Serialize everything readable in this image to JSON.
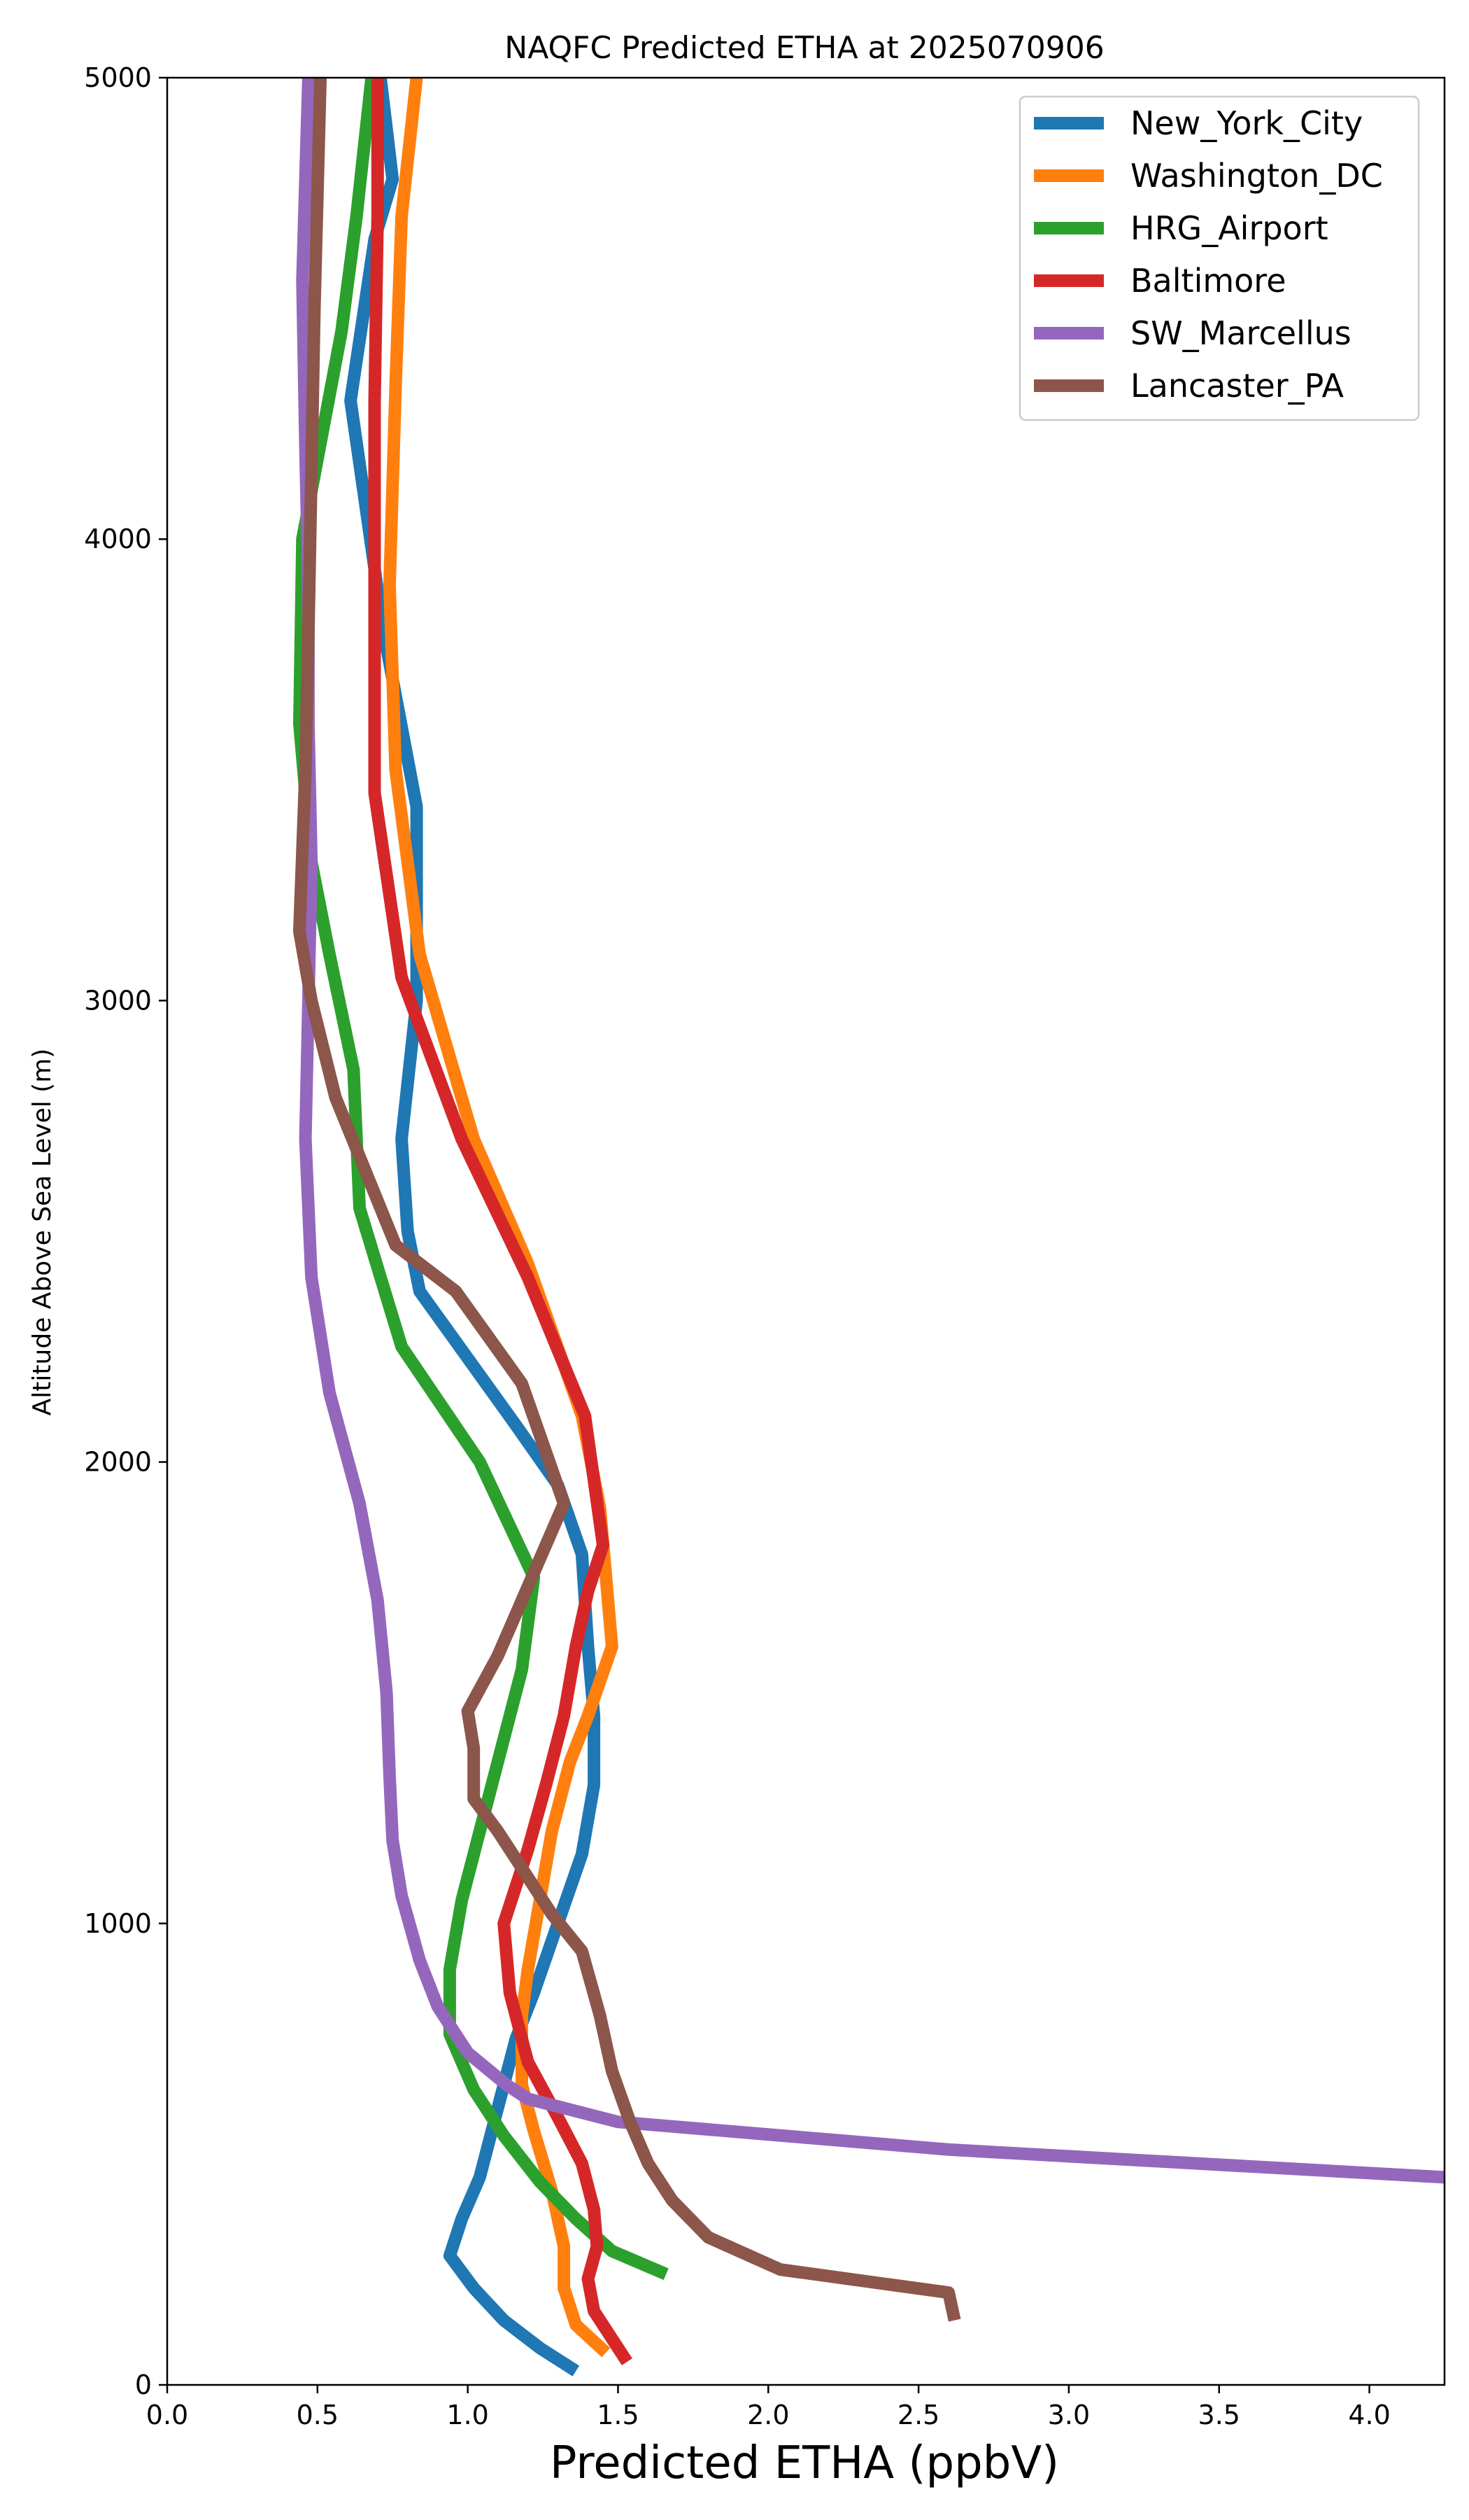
{
  "chart_data": {
    "type": "line",
    "title": "NAQFC Predicted ETHA at 2025070906",
    "xlabel": "Predicted ETHA (ppbV)",
    "ylabel": "Altitude Above Sea Level (m)",
    "xlim": [
      0.0,
      4.25
    ],
    "ylim": [
      0,
      5000
    ],
    "xticks": [
      "0.0",
      "0.5",
      "1.0",
      "1.5",
      "2.0",
      "2.5",
      "3.0",
      "3.5",
      "4.0"
    ],
    "xtick_values": [
      0.0,
      0.5,
      1.0,
      1.5,
      2.0,
      2.5,
      3.0,
      3.5,
      4.0
    ],
    "yticks": [
      "0",
      "1000",
      "2000",
      "3000",
      "4000",
      "5000"
    ],
    "ytick_values": [
      0,
      1000,
      2000,
      3000,
      4000,
      5000
    ],
    "grid": false,
    "legend_position": "top-right",
    "series": [
      {
        "name": "New_York_City",
        "color": "#1f77b4",
        "points": [
          [
            1.36,
            30
          ],
          [
            1.24,
            80
          ],
          [
            1.12,
            140
          ],
          [
            1.02,
            210
          ],
          [
            0.94,
            280
          ],
          [
            0.98,
            360
          ],
          [
            1.04,
            450
          ],
          [
            1.08,
            550
          ],
          [
            1.12,
            650
          ],
          [
            1.16,
            750
          ],
          [
            1.22,
            850
          ],
          [
            1.3,
            1000
          ],
          [
            1.38,
            1150
          ],
          [
            1.42,
            1300
          ],
          [
            1.42,
            1450
          ],
          [
            1.4,
            1600
          ],
          [
            1.38,
            1800
          ],
          [
            1.3,
            1950
          ],
          [
            1.16,
            2080
          ],
          [
            0.84,
            2370
          ],
          [
            0.8,
            2500
          ],
          [
            0.78,
            2700
          ],
          [
            0.83,
            3000
          ],
          [
            0.83,
            3420
          ],
          [
            0.72,
            3800
          ],
          [
            0.61,
            4300
          ],
          [
            0.69,
            4650
          ],
          [
            0.75,
            4780
          ],
          [
            0.71,
            5000
          ]
        ]
      },
      {
        "name": "Washington_DC",
        "color": "#ff7f0e",
        "points": [
          [
            1.46,
            70
          ],
          [
            1.36,
            130
          ],
          [
            1.32,
            210
          ],
          [
            1.32,
            300
          ],
          [
            1.28,
            420
          ],
          [
            1.22,
            550
          ],
          [
            1.18,
            650
          ],
          [
            1.18,
            800
          ],
          [
            1.2,
            900
          ],
          [
            1.24,
            1050
          ],
          [
            1.28,
            1200
          ],
          [
            1.34,
            1350
          ],
          [
            1.4,
            1450
          ],
          [
            1.48,
            1600
          ],
          [
            1.46,
            1750
          ],
          [
            1.44,
            1900
          ],
          [
            1.38,
            2100
          ],
          [
            1.2,
            2430
          ],
          [
            1.02,
            2700
          ],
          [
            0.84,
            3100
          ],
          [
            0.76,
            3500
          ],
          [
            0.74,
            3900
          ],
          [
            0.76,
            4330
          ],
          [
            0.78,
            4700
          ],
          [
            0.83,
            5000
          ]
        ]
      },
      {
        "name": "HRG_Airport",
        "color": "#2ca02c",
        "points": [
          [
            1.66,
            240
          ],
          [
            1.48,
            290
          ],
          [
            1.36,
            360
          ],
          [
            1.24,
            440
          ],
          [
            1.12,
            540
          ],
          [
            1.02,
            640
          ],
          [
            0.94,
            760
          ],
          [
            0.94,
            900
          ],
          [
            0.98,
            1050
          ],
          [
            1.04,
            1200
          ],
          [
            1.1,
            1350
          ],
          [
            1.18,
            1550
          ],
          [
            1.22,
            1750
          ],
          [
            1.04,
            2000
          ],
          [
            0.78,
            2250
          ],
          [
            0.64,
            2550
          ],
          [
            0.62,
            2850
          ],
          [
            0.54,
            3100
          ],
          [
            0.48,
            3300
          ],
          [
            0.44,
            3600
          ],
          [
            0.45,
            4000
          ],
          [
            0.58,
            4450
          ],
          [
            0.63,
            4700
          ],
          [
            0.68,
            5000
          ]
        ]
      },
      {
        "name": "Baltimore",
        "color": "#d62728",
        "points": [
          [
            1.53,
            50
          ],
          [
            1.47,
            110
          ],
          [
            1.42,
            160
          ],
          [
            1.4,
            230
          ],
          [
            1.43,
            300
          ],
          [
            1.42,
            380
          ],
          [
            1.38,
            480
          ],
          [
            1.3,
            580
          ],
          [
            1.2,
            700
          ],
          [
            1.14,
            850
          ],
          [
            1.12,
            1000
          ],
          [
            1.2,
            1160
          ],
          [
            1.26,
            1300
          ],
          [
            1.32,
            1450
          ],
          [
            1.36,
            1600
          ],
          [
            1.4,
            1720
          ],
          [
            1.45,
            1820
          ],
          [
            1.39,
            2100
          ],
          [
            1.2,
            2400
          ],
          [
            0.98,
            2700
          ],
          [
            0.78,
            3050
          ],
          [
            0.69,
            3450
          ],
          [
            0.69,
            3900
          ],
          [
            0.69,
            4300
          ],
          [
            0.7,
            4700
          ],
          [
            0.7,
            5000
          ]
        ]
      },
      {
        "name": "SW_Marcellus",
        "color": "#9467bd",
        "points": [
          [
            4.25,
            450
          ],
          [
            2.6,
            510
          ],
          [
            1.5,
            570
          ],
          [
            1.2,
            620
          ],
          [
            1.13,
            650
          ],
          [
            1.0,
            720
          ],
          [
            0.9,
            820
          ],
          [
            0.84,
            920
          ],
          [
            0.78,
            1060
          ],
          [
            0.75,
            1180
          ],
          [
            0.74,
            1320
          ],
          [
            0.73,
            1500
          ],
          [
            0.7,
            1700
          ],
          [
            0.64,
            1910
          ],
          [
            0.54,
            2150
          ],
          [
            0.48,
            2400
          ],
          [
            0.46,
            2700
          ],
          [
            0.47,
            3000
          ],
          [
            0.48,
            3300
          ],
          [
            0.47,
            3600
          ],
          [
            0.47,
            3900
          ],
          [
            0.46,
            4200
          ],
          [
            0.45,
            4560
          ],
          [
            0.47,
            5000
          ]
        ]
      },
      {
        "name": "Lancaster_PA",
        "color": "#8c564b",
        "points": [
          [
            2.62,
            140
          ],
          [
            2.6,
            200
          ],
          [
            2.04,
            250
          ],
          [
            1.8,
            320
          ],
          [
            1.68,
            400
          ],
          [
            1.6,
            480
          ],
          [
            1.54,
            570
          ],
          [
            1.48,
            680
          ],
          [
            1.44,
            800
          ],
          [
            1.38,
            940
          ],
          [
            1.28,
            1020
          ],
          [
            1.18,
            1120
          ],
          [
            1.1,
            1200
          ],
          [
            1.02,
            1270
          ],
          [
            1.02,
            1380
          ],
          [
            1.0,
            1460
          ],
          [
            1.1,
            1580
          ],
          [
            1.18,
            1700
          ],
          [
            1.32,
            1910
          ],
          [
            1.18,
            2170
          ],
          [
            0.96,
            2370
          ],
          [
            0.76,
            2470
          ],
          [
            0.56,
            2790
          ],
          [
            0.48,
            3000
          ],
          [
            0.44,
            3150
          ],
          [
            0.46,
            3500
          ],
          [
            0.47,
            3800
          ],
          [
            0.48,
            4150
          ],
          [
            0.49,
            4500
          ],
          [
            0.5,
            4750
          ],
          [
            0.51,
            5000
          ]
        ]
      }
    ]
  }
}
